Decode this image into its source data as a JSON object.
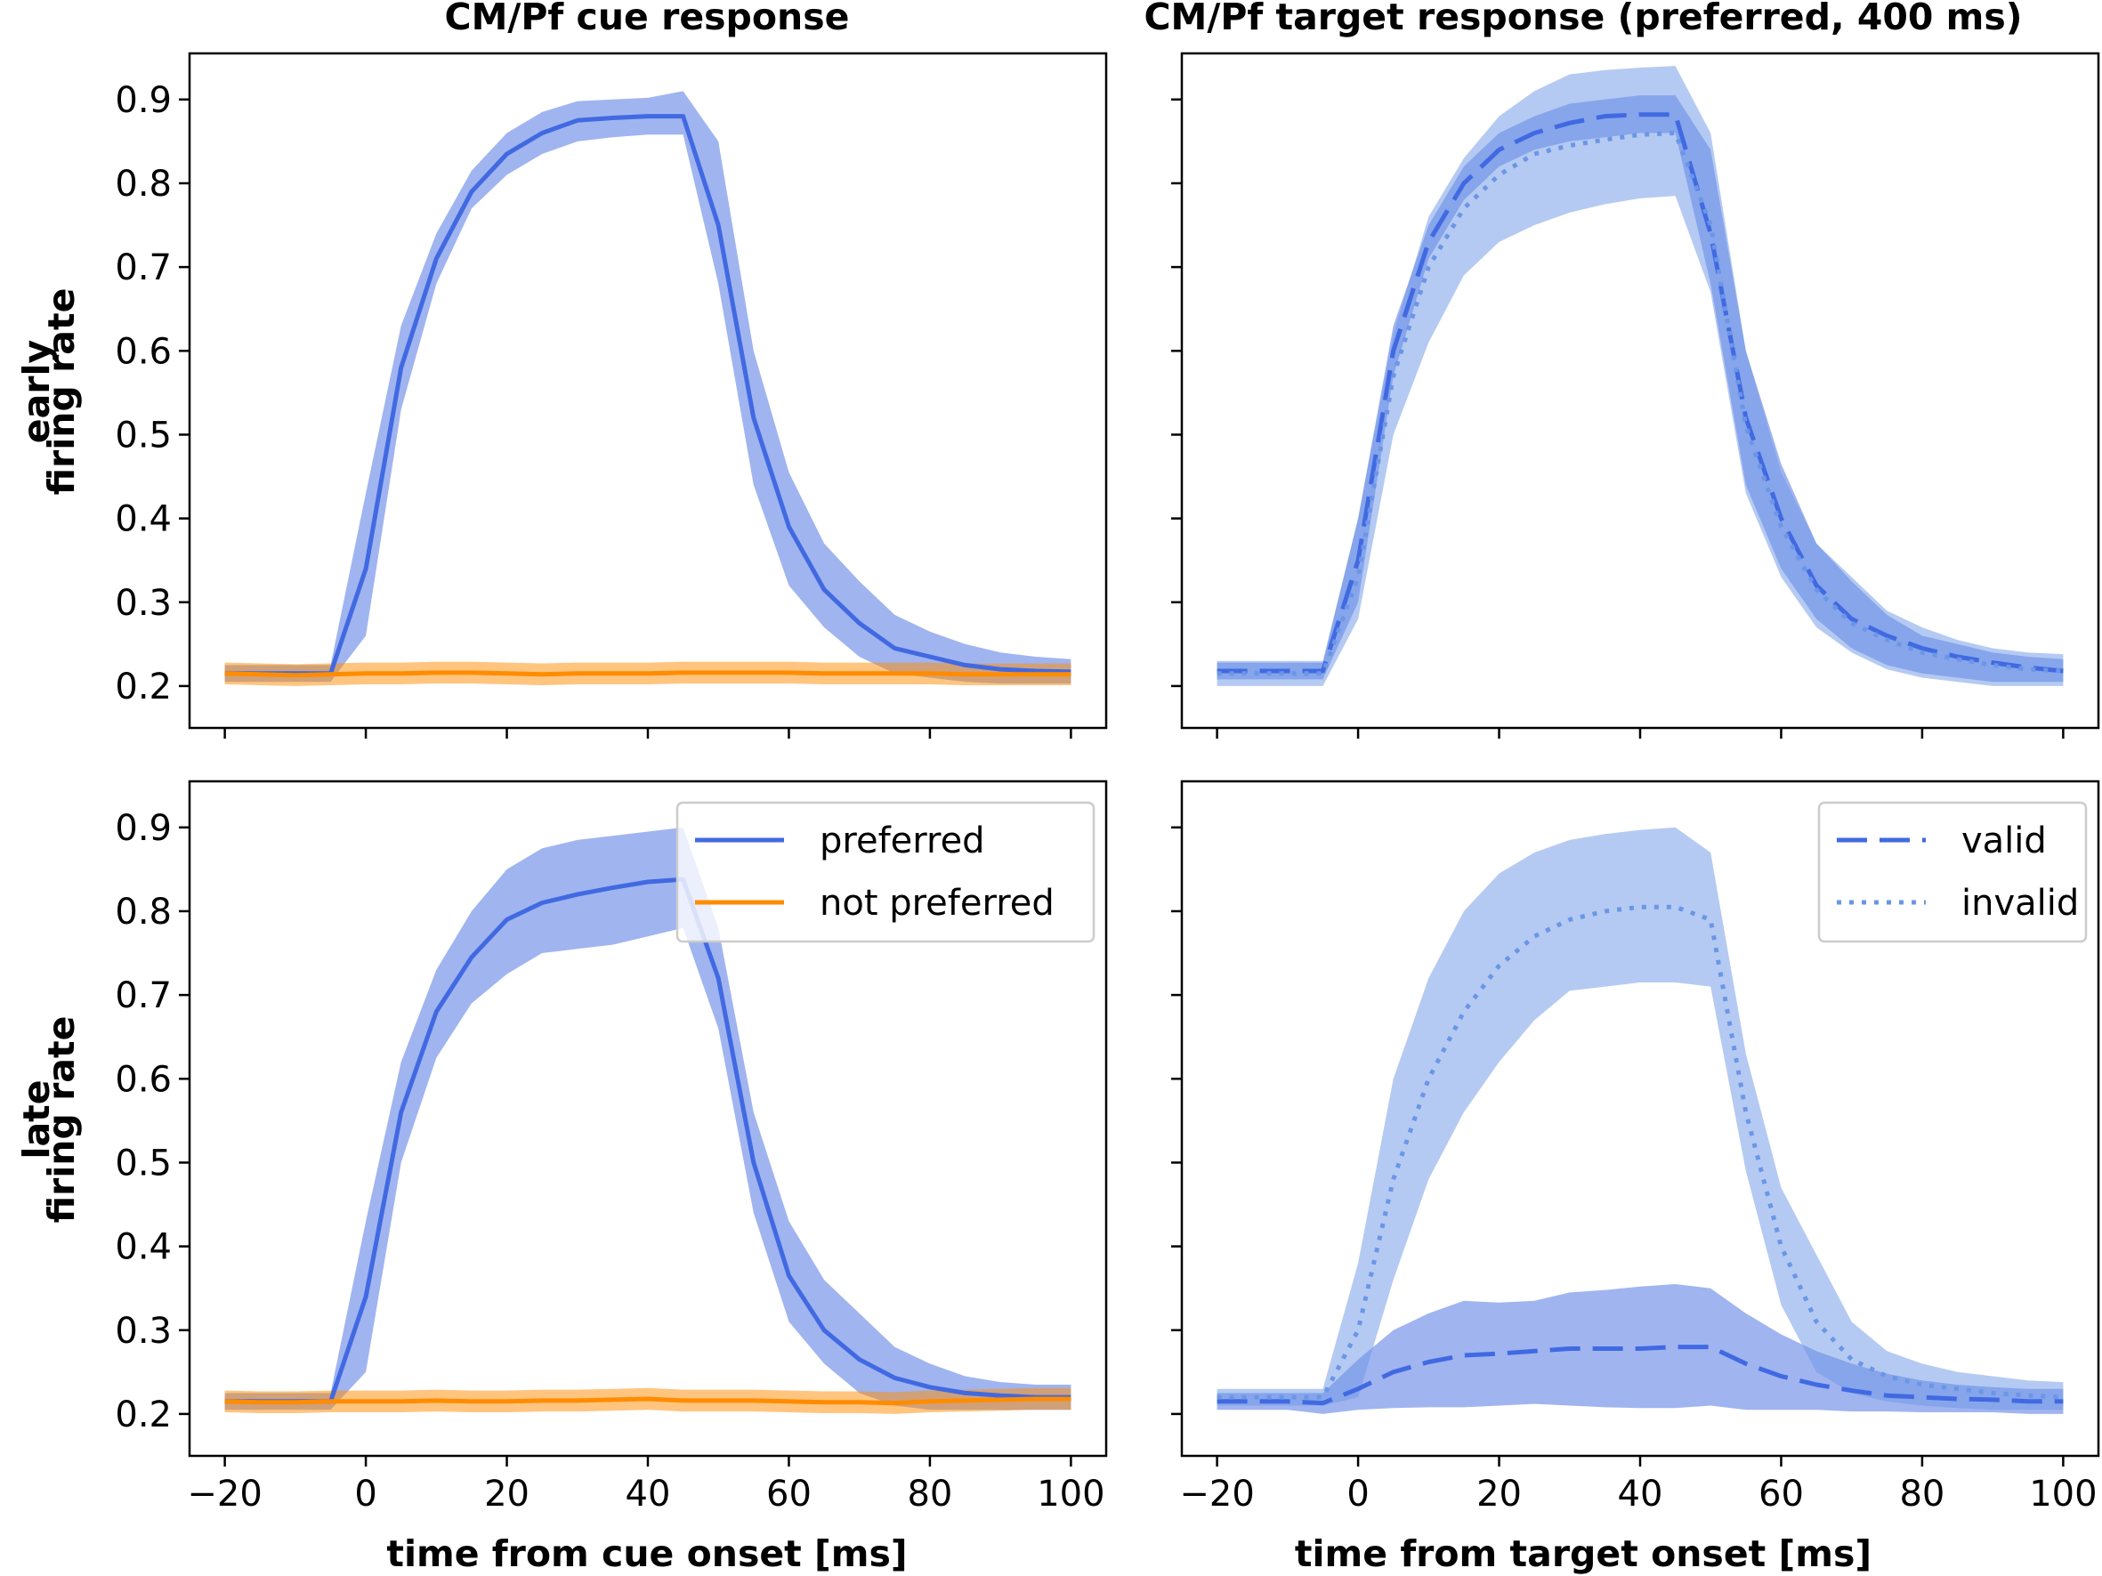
{
  "colors": {
    "blue": "#4169e1",
    "orange": "#ff8c00",
    "blue_band": "#4169e1",
    "light_band": "#6b96e6",
    "frame": "#000000"
  },
  "chart_data": [
    {
      "type": "line",
      "title": "CM/Pf cue response",
      "row_label": "early",
      "ylabel": "firing rate",
      "xlabel": "",
      "xlim": [
        -25,
        105
      ],
      "ylim": [
        0.15,
        0.955
      ],
      "xticks": [
        "−20",
        "0",
        "20",
        "40",
        "60",
        "80",
        "100"
      ],
      "yticks": [
        "0.2",
        "0.3",
        "0.4",
        "0.5",
        "0.6",
        "0.7",
        "0.8",
        "0.9"
      ],
      "tick_labels": {
        "x": false,
        "y": true
      },
      "x": [
        -20,
        -15,
        -10,
        -5,
        0,
        5,
        10,
        15,
        20,
        25,
        30,
        35,
        40,
        45,
        50,
        55,
        60,
        65,
        70,
        75,
        80,
        85,
        90,
        95,
        100
      ],
      "series": [
        {
          "name": "preferred",
          "color": "#4169e1",
          "style": "solid",
          "values": [
            0.215,
            0.215,
            0.215,
            0.215,
            0.34,
            0.58,
            0.71,
            0.79,
            0.835,
            0.86,
            0.875,
            0.878,
            0.88,
            0.88,
            0.75,
            0.52,
            0.39,
            0.315,
            0.275,
            0.245,
            0.235,
            0.225,
            0.22,
            0.218,
            0.217
          ],
          "band_upper": [
            0.225,
            0.225,
            0.225,
            0.225,
            0.43,
            0.63,
            0.74,
            0.815,
            0.86,
            0.885,
            0.898,
            0.9,
            0.902,
            0.91,
            0.85,
            0.6,
            0.455,
            0.37,
            0.325,
            0.285,
            0.265,
            0.25,
            0.24,
            0.235,
            0.232
          ],
          "band_lower": [
            0.205,
            0.205,
            0.205,
            0.205,
            0.26,
            0.53,
            0.68,
            0.77,
            0.81,
            0.835,
            0.85,
            0.855,
            0.858,
            0.858,
            0.68,
            0.44,
            0.32,
            0.27,
            0.235,
            0.215,
            0.21,
            0.205,
            0.203,
            0.203,
            0.203
          ]
        },
        {
          "name": "not preferred",
          "color": "#ff8c00",
          "style": "solid",
          "values": [
            0.215,
            0.214,
            0.213,
            0.214,
            0.215,
            0.215,
            0.216,
            0.216,
            0.215,
            0.214,
            0.215,
            0.215,
            0.215,
            0.216,
            0.216,
            0.216,
            0.216,
            0.215,
            0.215,
            0.215,
            0.215,
            0.214,
            0.214,
            0.214,
            0.214
          ],
          "band_upper": [
            0.228,
            0.227,
            0.226,
            0.227,
            0.228,
            0.228,
            0.229,
            0.229,
            0.228,
            0.227,
            0.228,
            0.228,
            0.228,
            0.229,
            0.229,
            0.229,
            0.229,
            0.228,
            0.228,
            0.228,
            0.228,
            0.227,
            0.227,
            0.227,
            0.227
          ],
          "band_lower": [
            0.202,
            0.201,
            0.2,
            0.201,
            0.202,
            0.202,
            0.203,
            0.203,
            0.202,
            0.201,
            0.202,
            0.202,
            0.202,
            0.203,
            0.203,
            0.203,
            0.203,
            0.202,
            0.202,
            0.202,
            0.202,
            0.201,
            0.201,
            0.201,
            0.201
          ]
        }
      ]
    },
    {
      "type": "line",
      "title": "CM/Pf target response (preferred, 400 ms)",
      "row_label": "",
      "ylabel": "",
      "xlabel": "",
      "xlim": [
        -25,
        105
      ],
      "ylim": [
        0.15,
        0.955
      ],
      "xticks": [
        "−20",
        "0",
        "20",
        "40",
        "60",
        "80",
        "100"
      ],
      "yticks": [
        "0.2",
        "0.3",
        "0.4",
        "0.5",
        "0.6",
        "0.7",
        "0.8",
        "0.9"
      ],
      "tick_labels": {
        "x": false,
        "y": false
      },
      "x": [
        -20,
        -15,
        -10,
        -5,
        0,
        5,
        10,
        15,
        20,
        25,
        30,
        35,
        40,
        45,
        50,
        55,
        60,
        65,
        70,
        75,
        80,
        85,
        90,
        95,
        100
      ],
      "series": [
        {
          "name": "valid",
          "color": "#4169e1",
          "style": "dashed",
          "values": [
            0.218,
            0.218,
            0.218,
            0.218,
            0.35,
            0.6,
            0.73,
            0.8,
            0.84,
            0.86,
            0.872,
            0.88,
            0.882,
            0.882,
            0.74,
            0.52,
            0.4,
            0.32,
            0.28,
            0.26,
            0.245,
            0.235,
            0.228,
            0.222,
            0.218
          ],
          "band_upper": [
            0.228,
            0.228,
            0.228,
            0.228,
            0.4,
            0.63,
            0.75,
            0.82,
            0.86,
            0.88,
            0.895,
            0.9,
            0.905,
            0.905,
            0.84,
            0.6,
            0.465,
            0.37,
            0.325,
            0.285,
            0.26,
            0.25,
            0.24,
            0.235,
            0.232
          ],
          "band_lower": [
            0.208,
            0.208,
            0.208,
            0.208,
            0.3,
            0.57,
            0.71,
            0.78,
            0.82,
            0.84,
            0.85,
            0.855,
            0.86,
            0.86,
            0.68,
            0.44,
            0.34,
            0.28,
            0.245,
            0.225,
            0.215,
            0.21,
            0.205,
            0.205,
            0.205
          ]
        },
        {
          "name": "invalid",
          "color": "#6b96e6",
          "style": "dotted",
          "values": [
            0.215,
            0.215,
            0.215,
            0.215,
            0.33,
            0.57,
            0.7,
            0.77,
            0.81,
            0.835,
            0.845,
            0.852,
            0.858,
            0.86,
            0.75,
            0.51,
            0.39,
            0.315,
            0.275,
            0.255,
            0.24,
            0.232,
            0.225,
            0.22,
            0.218
          ],
          "band_upper": [
            0.23,
            0.23,
            0.23,
            0.23,
            0.4,
            0.62,
            0.76,
            0.83,
            0.88,
            0.91,
            0.93,
            0.935,
            0.938,
            0.94,
            0.86,
            0.6,
            0.455,
            0.37,
            0.33,
            0.29,
            0.27,
            0.255,
            0.245,
            0.24,
            0.238
          ],
          "band_lower": [
            0.2,
            0.2,
            0.2,
            0.2,
            0.28,
            0.5,
            0.61,
            0.69,
            0.73,
            0.75,
            0.765,
            0.775,
            0.782,
            0.785,
            0.67,
            0.43,
            0.33,
            0.27,
            0.24,
            0.22,
            0.21,
            0.205,
            0.2,
            0.2,
            0.2
          ]
        }
      ]
    },
    {
      "type": "line",
      "title": "",
      "row_label": "late",
      "ylabel": "firing rate",
      "xlabel": "time from cue onset [ms]",
      "xlim": [
        -25,
        105
      ],
      "ylim": [
        0.15,
        0.955
      ],
      "xticks": [
        "−20",
        "0",
        "20",
        "40",
        "60",
        "80",
        "100"
      ],
      "yticks": [
        "0.2",
        "0.3",
        "0.4",
        "0.5",
        "0.6",
        "0.7",
        "0.8",
        "0.9"
      ],
      "tick_labels": {
        "x": true,
        "y": true
      },
      "legend": {
        "location": "top-right",
        "entries": [
          "preferred",
          "not preferred"
        ]
      },
      "x": [
        -20,
        -15,
        -10,
        -5,
        0,
        5,
        10,
        15,
        20,
        25,
        30,
        35,
        40,
        45,
        50,
        55,
        60,
        65,
        70,
        75,
        80,
        85,
        90,
        95,
        100
      ],
      "series": [
        {
          "name": "preferred",
          "color": "#4169e1",
          "style": "solid",
          "values": [
            0.215,
            0.215,
            0.215,
            0.215,
            0.34,
            0.56,
            0.68,
            0.745,
            0.79,
            0.81,
            0.82,
            0.828,
            0.835,
            0.838,
            0.72,
            0.5,
            0.365,
            0.3,
            0.265,
            0.243,
            0.232,
            0.225,
            0.222,
            0.22,
            0.22
          ],
          "band_upper": [
            0.225,
            0.225,
            0.225,
            0.225,
            0.43,
            0.62,
            0.73,
            0.8,
            0.85,
            0.875,
            0.885,
            0.89,
            0.895,
            0.9,
            0.78,
            0.56,
            0.43,
            0.36,
            0.32,
            0.28,
            0.26,
            0.245,
            0.238,
            0.235,
            0.235
          ],
          "band_lower": [
            0.205,
            0.205,
            0.205,
            0.205,
            0.25,
            0.5,
            0.625,
            0.69,
            0.725,
            0.75,
            0.755,
            0.76,
            0.77,
            0.78,
            0.66,
            0.44,
            0.31,
            0.26,
            0.225,
            0.21,
            0.205,
            0.205,
            0.205,
            0.205,
            0.205
          ]
        },
        {
          "name": "not preferred",
          "color": "#ff8c00",
          "style": "solid",
          "values": [
            0.215,
            0.214,
            0.214,
            0.215,
            0.215,
            0.215,
            0.216,
            0.215,
            0.215,
            0.216,
            0.216,
            0.217,
            0.218,
            0.216,
            0.216,
            0.216,
            0.215,
            0.214,
            0.214,
            0.213,
            0.215,
            0.216,
            0.217,
            0.218,
            0.218
          ],
          "band_upper": [
            0.228,
            0.227,
            0.227,
            0.228,
            0.228,
            0.228,
            0.229,
            0.228,
            0.228,
            0.229,
            0.229,
            0.23,
            0.231,
            0.229,
            0.229,
            0.229,
            0.228,
            0.227,
            0.227,
            0.226,
            0.228,
            0.229,
            0.23,
            0.231,
            0.231
          ],
          "band_lower": [
            0.202,
            0.201,
            0.201,
            0.202,
            0.202,
            0.202,
            0.203,
            0.202,
            0.202,
            0.203,
            0.203,
            0.204,
            0.205,
            0.203,
            0.203,
            0.203,
            0.202,
            0.201,
            0.201,
            0.2,
            0.202,
            0.203,
            0.204,
            0.205,
            0.205
          ]
        }
      ]
    },
    {
      "type": "line",
      "title": "",
      "row_label": "",
      "ylabel": "",
      "xlabel": "time from target onset [ms]",
      "xlim": [
        -25,
        105
      ],
      "ylim": [
        0.15,
        0.955
      ],
      "xticks": [
        "−20",
        "0",
        "20",
        "40",
        "60",
        "80",
        "100"
      ],
      "yticks": [
        "0.2",
        "0.3",
        "0.4",
        "0.5",
        "0.6",
        "0.7",
        "0.8",
        "0.9"
      ],
      "tick_labels": {
        "x": true,
        "y": false
      },
      "legend": {
        "location": "top-right",
        "entries": [
          "valid",
          "invalid"
        ]
      },
      "x": [
        -20,
        -15,
        -10,
        -5,
        0,
        5,
        10,
        15,
        20,
        25,
        30,
        35,
        40,
        45,
        50,
        55,
        60,
        65,
        70,
        75,
        80,
        85,
        90,
        95,
        100
      ],
      "series": [
        {
          "name": "valid",
          "color": "#4169e1",
          "style": "dashed",
          "values": [
            0.215,
            0.215,
            0.215,
            0.213,
            0.23,
            0.25,
            0.262,
            0.27,
            0.272,
            0.275,
            0.278,
            0.278,
            0.278,
            0.28,
            0.28,
            0.26,
            0.245,
            0.235,
            0.228,
            0.222,
            0.22,
            0.218,
            0.217,
            0.215,
            0.215
          ],
          "band_upper": [
            0.225,
            0.225,
            0.225,
            0.225,
            0.265,
            0.3,
            0.32,
            0.335,
            0.333,
            0.335,
            0.345,
            0.348,
            0.352,
            0.355,
            0.35,
            0.32,
            0.295,
            0.275,
            0.26,
            0.248,
            0.24,
            0.235,
            0.232,
            0.23,
            0.23
          ],
          "band_lower": [
            0.205,
            0.205,
            0.205,
            0.2,
            0.205,
            0.207,
            0.208,
            0.208,
            0.21,
            0.212,
            0.21,
            0.208,
            0.207,
            0.207,
            0.21,
            0.205,
            0.205,
            0.205,
            0.203,
            0.203,
            0.202,
            0.202,
            0.202,
            0.2,
            0.2
          ]
        },
        {
          "name": "invalid",
          "color": "#6b96e6",
          "style": "dotted",
          "values": [
            0.22,
            0.22,
            0.22,
            0.22,
            0.3,
            0.48,
            0.6,
            0.68,
            0.735,
            0.77,
            0.79,
            0.8,
            0.805,
            0.805,
            0.79,
            0.56,
            0.4,
            0.31,
            0.265,
            0.245,
            0.235,
            0.23,
            0.225,
            0.222,
            0.22
          ],
          "band_upper": [
            0.23,
            0.23,
            0.23,
            0.23,
            0.38,
            0.6,
            0.72,
            0.8,
            0.845,
            0.87,
            0.885,
            0.892,
            0.897,
            0.9,
            0.87,
            0.63,
            0.47,
            0.39,
            0.31,
            0.275,
            0.26,
            0.25,
            0.245,
            0.24,
            0.238
          ],
          "band_lower": [
            0.21,
            0.21,
            0.21,
            0.21,
            0.22,
            0.36,
            0.48,
            0.56,
            0.62,
            0.67,
            0.705,
            0.71,
            0.715,
            0.715,
            0.71,
            0.49,
            0.33,
            0.25,
            0.225,
            0.215,
            0.21,
            0.207,
            0.205,
            0.205,
            0.205
          ]
        }
      ]
    }
  ]
}
